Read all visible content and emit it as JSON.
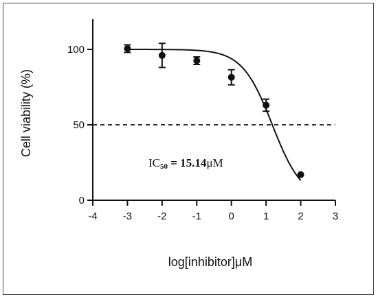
{
  "chart_data": {
    "type": "scatter",
    "xlabel": "log[inhibitor]μM",
    "ylabel": "Cell viability (%)",
    "xlim": [
      -4,
      3
    ],
    "ylim": [
      0,
      120
    ],
    "xticks": [
      "-4",
      "-3",
      "-2",
      "-1",
      "0",
      "1",
      "2",
      "3"
    ],
    "yticks": [
      "0",
      "50",
      "100"
    ],
    "series": [
      {
        "points": [
          {
            "x": -3,
            "y": 100.5,
            "err": 2.5
          },
          {
            "x": -2,
            "y": 96,
            "err": 8
          },
          {
            "x": -1,
            "y": 92.5,
            "err": 2.5
          },
          {
            "x": 0,
            "y": 81.5,
            "err": 5
          },
          {
            "x": 1,
            "y": 63,
            "err": 4
          },
          {
            "x": 2,
            "y": 17,
            "err": 0
          }
        ]
      }
    ],
    "fit_curve": {
      "top": 100,
      "bottom": 0,
      "log_ic50": 1.18,
      "hill": 1.0,
      "x_range": [
        -3,
        2
      ]
    },
    "reference_line": {
      "y": 50,
      "style": "dashed"
    },
    "annotation": {
      "prefix": "IC",
      "subscript": "50",
      "value": " = 15.14",
      "unit": "μM"
    },
    "grid": false,
    "legend": false
  }
}
